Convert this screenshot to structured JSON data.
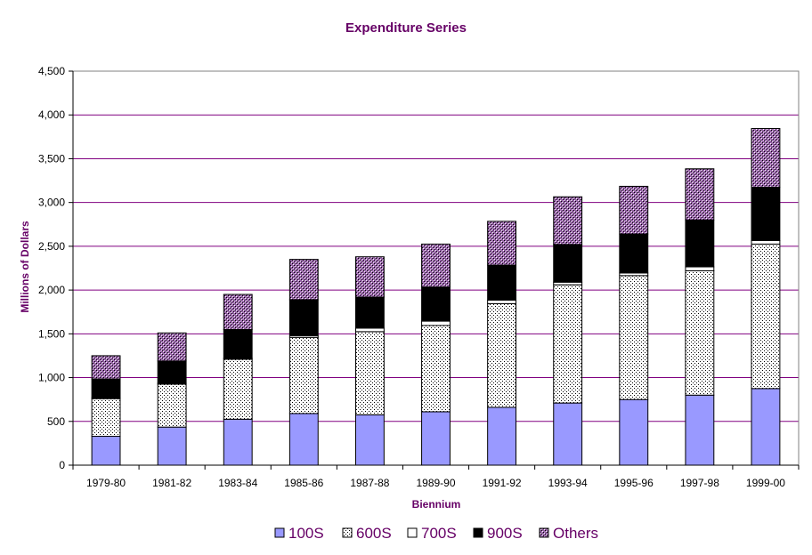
{
  "chart_data": {
    "type": "bar",
    "stacked": true,
    "title": "Expenditure Series",
    "xlabel": "Biennium",
    "ylabel": "Millions of Dollars",
    "ylim": [
      0,
      4500
    ],
    "yticks": [
      "0",
      "500",
      "1,000",
      "1,500",
      "2,000",
      "2,500",
      "3,000",
      "3,500",
      "4,000",
      "4,500"
    ],
    "categories": [
      "1979-80",
      "1981-82",
      "1983-84",
      "1985-86",
      "1987-88",
      "1989-90",
      "1991-92",
      "1993-94",
      "1995-96",
      "1997-98",
      "1999-00"
    ],
    "grid": true,
    "legend_position": "bottom",
    "series": [
      {
        "name": "100S",
        "color": "#9999ff",
        "pattern": "solid",
        "values": [
          330,
          435,
          525,
          590,
          575,
          610,
          660,
          710,
          750,
          800,
          875
        ]
      },
      {
        "name": "600S",
        "color": "#ffffff",
        "pattern": "dots",
        "values": [
          430,
          490,
          685,
          870,
          950,
          985,
          1185,
          1350,
          1415,
          1420,
          1650
        ]
      },
      {
        "name": "700S",
        "color": "#ffffff",
        "pattern": "solid",
        "values": [
          10,
          10,
          10,
          20,
          40,
          50,
          40,
          30,
          30,
          45,
          40
        ]
      },
      {
        "name": "900S",
        "color": "#000000",
        "pattern": "solid",
        "values": [
          215,
          255,
          330,
          410,
          355,
          390,
          400,
          430,
          445,
          535,
          610
        ]
      },
      {
        "name": "Others",
        "color": "#9966aa",
        "pattern": "crosshatch",
        "values": [
          265,
          320,
          400,
          460,
          460,
          490,
          500,
          545,
          545,
          585,
          670
        ]
      }
    ]
  }
}
